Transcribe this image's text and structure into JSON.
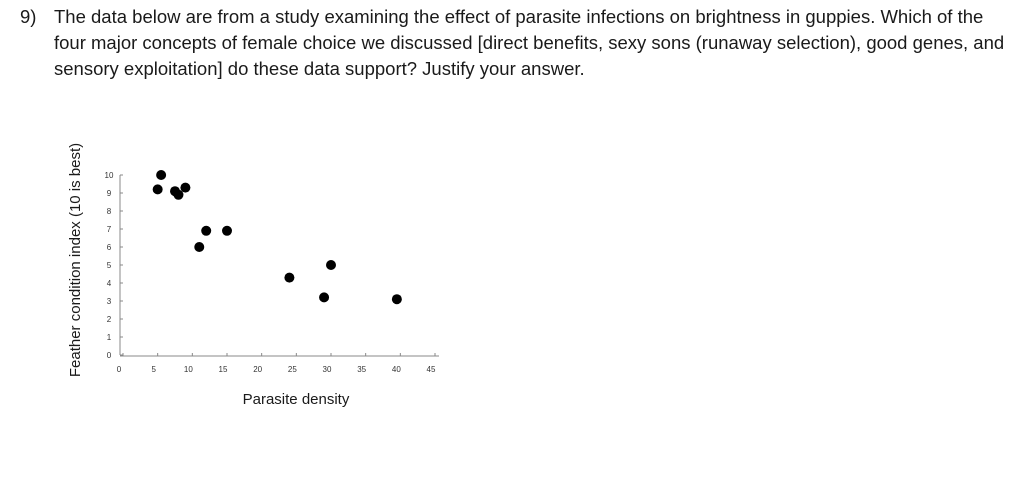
{
  "question": {
    "number": "9)",
    "text": "The data below are from a study examining the effect of parasite infections on brightness in guppies. Which of the four major concepts of female choice we discussed [direct benefits, sexy sons (runaway selection), good genes, and sensory exploitation] do these data support? Justify your answer."
  },
  "chart_data": {
    "type": "scatter",
    "xlabel": "Parasite density",
    "ylabel": "Feather condition index (10 is best)",
    "xlim": [
      0,
      45
    ],
    "ylim": [
      0,
      10
    ],
    "x_ticks": [
      0,
      5,
      10,
      15,
      20,
      25,
      30,
      35,
      40,
      45
    ],
    "y_ticks": [
      0,
      1,
      2,
      3,
      4,
      5,
      6,
      7,
      8,
      9,
      10
    ],
    "grid": false,
    "marker_color": "#000000",
    "points": [
      {
        "x": 5,
        "y": 9.2
      },
      {
        "x": 5.5,
        "y": 10.0
      },
      {
        "x": 7.5,
        "y": 9.1
      },
      {
        "x": 8,
        "y": 8.9
      },
      {
        "x": 9,
        "y": 9.3
      },
      {
        "x": 11,
        "y": 6.0
      },
      {
        "x": 12,
        "y": 6.9
      },
      {
        "x": 15,
        "y": 6.9
      },
      {
        "x": 24,
        "y": 4.3
      },
      {
        "x": 29,
        "y": 3.2
      },
      {
        "x": 30,
        "y": 5.0
      },
      {
        "x": 39.5,
        "y": 3.1
      }
    ]
  }
}
